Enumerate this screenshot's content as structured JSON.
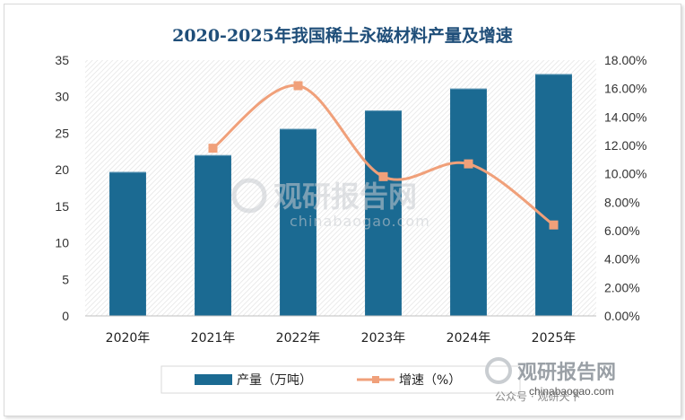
{
  "chart_data": {
    "type": "bar",
    "title": "2020-2025年我国稀土永磁材料产量及增速",
    "categories": [
      "2020年",
      "2021年",
      "2022年",
      "2023年",
      "2024年",
      "2025年"
    ],
    "series": [
      {
        "name": "产量（万吨）",
        "type": "bar",
        "axis": "left",
        "values": [
          19.7,
          22.0,
          25.6,
          28.1,
          31.1,
          33.1
        ],
        "color": "#1b6a92"
      },
      {
        "name": "增速（%）",
        "type": "line",
        "axis": "right",
        "values": [
          null,
          11.8,
          16.2,
          9.8,
          10.7,
          6.4
        ],
        "color": "#f0a07a"
      }
    ],
    "y_left": {
      "min": 0,
      "max": 35,
      "ticks": [
        0,
        5,
        10,
        15,
        20,
        25,
        30,
        35
      ]
    },
    "y_right": {
      "min": 0,
      "max": 18,
      "ticks": [
        "0.00%",
        "2.00%",
        "4.00%",
        "6.00%",
        "8.00%",
        "10.00%",
        "12.00%",
        "14.00%",
        "16.00%",
        "18.00%"
      ]
    },
    "legend": "bottom",
    "grid": false
  },
  "watermark": {
    "center_text": "观研报告网",
    "center_sub": "chinabaogao.com",
    "corner_text": "观研报告网",
    "corner_sub": "chinabaogao.com",
    "corner_tag": "公众号 · 观研天下"
  }
}
